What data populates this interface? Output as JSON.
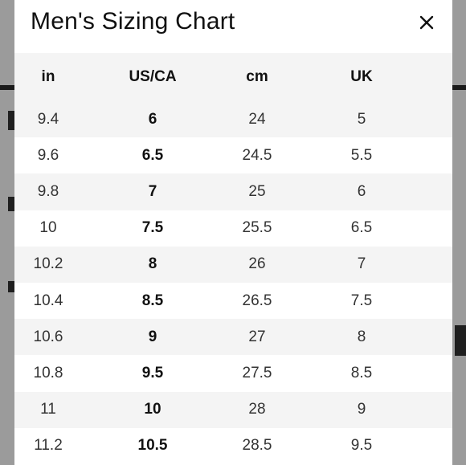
{
  "modal": {
    "title": "Men's Sizing Chart",
    "close_icon": "close-icon"
  },
  "table": {
    "headers": [
      "in",
      "US/CA",
      "cm",
      "UK"
    ],
    "rows": [
      [
        "9.4",
        "6",
        "24",
        "5"
      ],
      [
        "9.6",
        "6.5",
        "24.5",
        "5.5"
      ],
      [
        "9.8",
        "7",
        "25",
        "6"
      ],
      [
        "10",
        "7.5",
        "25.5",
        "6.5"
      ],
      [
        "10.2",
        "8",
        "26",
        "7"
      ],
      [
        "10.4",
        "8.5",
        "26.5",
        "7.5"
      ],
      [
        "10.6",
        "9",
        "27",
        "8"
      ],
      [
        "10.8",
        "9.5",
        "27.5",
        "8.5"
      ],
      [
        "11",
        "10",
        "28",
        "9"
      ],
      [
        "11.2",
        "10.5",
        "28.5",
        "9.5"
      ]
    ]
  }
}
